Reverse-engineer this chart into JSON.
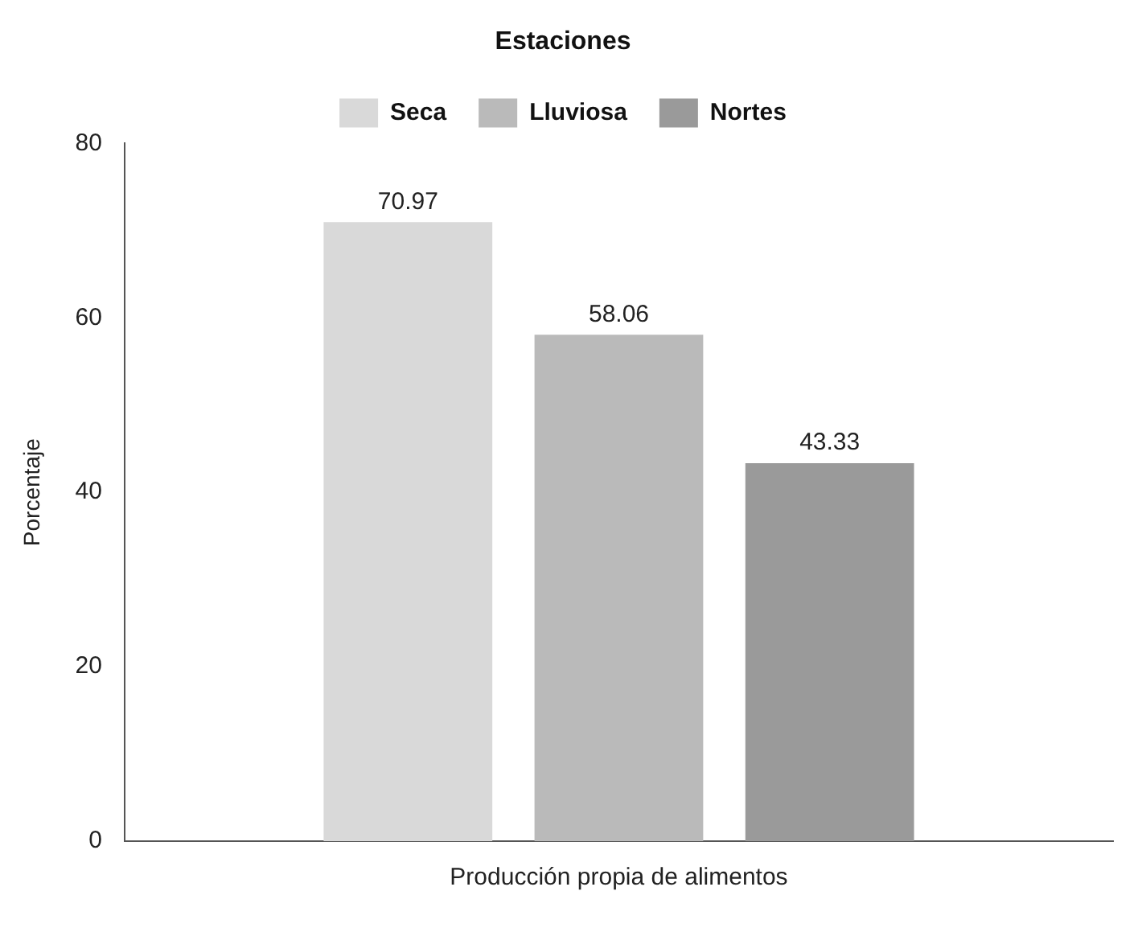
{
  "chart_data": {
    "type": "bar",
    "legend_title": "Estaciones",
    "ylabel": "Porcentaje",
    "categories": [
      "Producción propia de alimentos"
    ],
    "series": [
      {
        "name": "Seca",
        "color": "#d9d9d9",
        "values": [
          70.97
        ]
      },
      {
        "name": "Lluviosa",
        "color": "#bababa",
        "values": [
          58.06
        ]
      },
      {
        "name": "Nortes",
        "color": "#9a9a9a",
        "values": [
          43.33
        ]
      }
    ],
    "ylim": [
      0,
      80
    ],
    "yticks": [
      0,
      20,
      40,
      60,
      80
    ],
    "grid": false,
    "legend": "top",
    "data_labels": true
  }
}
